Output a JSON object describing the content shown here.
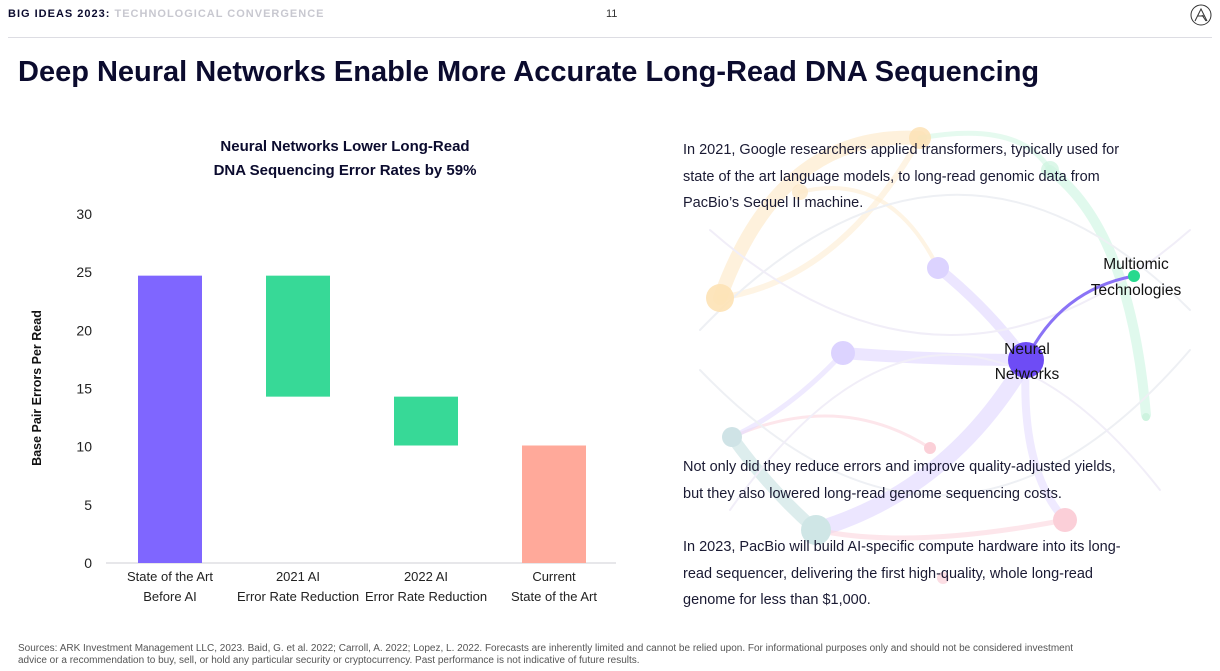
{
  "header": {
    "series_label": "BIG IDEAS 2023",
    "section": "TECHNOLOGICAL CONVERGENCE",
    "page_number": "11"
  },
  "title": "Deep Neural Networks Enable More Accurate Long-Read DNA Sequencing",
  "chart_data": {
    "type": "waterfall",
    "title_lines": [
      "Neural Networks Lower Long-Read",
      "DNA Sequencing Error Rates by 59%"
    ],
    "ylabel": "Base Pair Errors Per Read",
    "ylim": [
      0,
      30
    ],
    "yticks": [
      0,
      5,
      10,
      15,
      20,
      25,
      30
    ],
    "categories": [
      {
        "lines": [
          "State of the Art",
          "Before AI"
        ],
        "low": 0,
        "high": 24.7,
        "color": "#7f66ff"
      },
      {
        "lines": [
          "2021 AI",
          "Error Rate Reduction"
        ],
        "low": 14.3,
        "high": 24.7,
        "color": "#37d997"
      },
      {
        "lines": [
          "2022 AI",
          "Error Rate Reduction"
        ],
        "low": 10.1,
        "high": 14.3,
        "color": "#37d997"
      },
      {
        "lines": [
          "Current",
          "State of the Art"
        ],
        "low": 0,
        "high": 10.1,
        "color": "#ffa99a"
      }
    ]
  },
  "network": {
    "node_labels": {
      "multiomic": [
        "Multiomic",
        "Technologies"
      ],
      "neural": [
        "Neural",
        "Networks"
      ]
    },
    "colors": {
      "purple": "#6e4cf5",
      "green": "#27d98e"
    }
  },
  "paragraphs": {
    "p1": [
      "In 2021, Google researchers applied transformers, typically used for",
      "state of the art language models, to long-read genomic data from",
      "PacBio’s Sequel II machine."
    ],
    "p2": [
      "Not only did they reduce errors and improve quality-adjusted yields,",
      "but they also lowered long-read genome sequencing costs."
    ],
    "p3": [
      "In 2023, PacBio will build AI-specific compute hardware into its long-",
      "read sequencer, delivering the first high-quality, whole long-read",
      "genome for less than $1,000."
    ]
  },
  "footnote": [
    "Sources: ARK Investment Management LLC, 2023. Baid, G. et al. 2022; Carroll, A. 2022; Lopez, L. 2022. Forecasts are inherently limited and cannot be relied upon. For informational purposes only and should not be considered investment",
    "advice or a recommendation to buy, sell, or hold any particular security or cryptocurrency. Past performance is not indicative of future results."
  ]
}
